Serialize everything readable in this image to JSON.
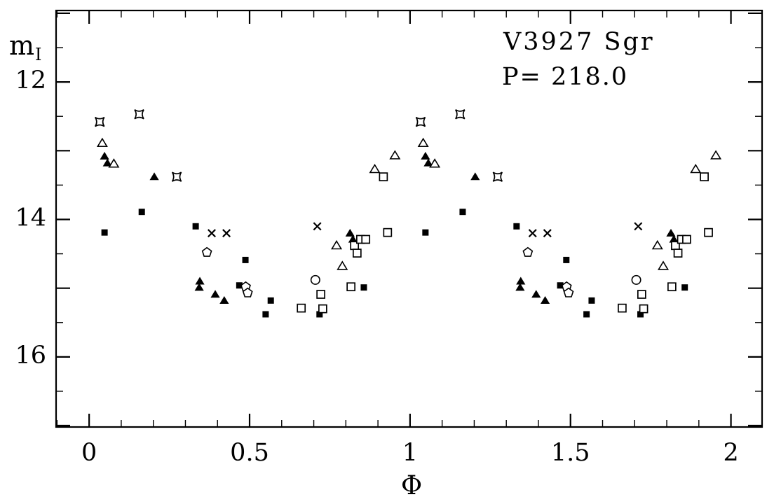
{
  "chart_data": {
    "type": "scatter",
    "title": "V3927 Sgr",
    "subtitle": "P= 218.0",
    "xlabel": "Φ",
    "ylabel_base": "m",
    "ylabel_sub": "I",
    "xlim": [
      -0.103,
      2.097
    ],
    "ylim": [
      17.02,
      10.96
    ],
    "y_inverted": true,
    "grid": false,
    "legend": "none",
    "phase_repeat": 1.0,
    "x_ticks": [
      {
        "v": 0,
        "label": "0"
      },
      {
        "v": 0.5,
        "label": "0.5"
      },
      {
        "v": 1,
        "label": "1"
      },
      {
        "v": 1.5,
        "label": "1.5"
      },
      {
        "v": 2,
        "label": "2"
      }
    ],
    "x_minor_step": 0.1,
    "y_ticks": [
      {
        "v": 12,
        "label": "12"
      },
      {
        "v": 14,
        "label": "14"
      },
      {
        "v": 16,
        "label": "16"
      }
    ],
    "y_major_step": 1.0,
    "y_minor_step": 0.5,
    "marker_color": "#000000",
    "background_color": "#ffffff",
    "series": [
      {
        "name": "filled-squares",
        "symbol": "square-filled",
        "points": [
          [
            0.048,
            14.19
          ],
          [
            0.164,
            13.89
          ],
          [
            0.332,
            14.1
          ],
          [
            0.468,
            14.96
          ],
          [
            0.487,
            14.59
          ],
          [
            0.55,
            15.38
          ],
          [
            0.566,
            15.18
          ],
          [
            0.718,
            15.38
          ],
          [
            0.856,
            14.99
          ]
        ]
      },
      {
        "name": "filled-triangles",
        "symbol": "triangle-filled",
        "points": [
          [
            0.048,
            13.08
          ],
          [
            0.057,
            13.18
          ],
          [
            0.203,
            13.38
          ],
          [
            0.345,
            14.9
          ],
          [
            0.343,
            14.99
          ],
          [
            0.393,
            15.09
          ],
          [
            0.421,
            15.18
          ],
          [
            0.813,
            14.2
          ],
          [
            0.822,
            14.29
          ]
        ]
      },
      {
        "name": "crosses",
        "symbol": "cross",
        "points": [
          [
            0.382,
            14.2
          ],
          [
            0.428,
            14.2
          ],
          [
            0.711,
            14.1
          ]
        ]
      },
      {
        "name": "four-point-stars",
        "symbol": "star4",
        "points": [
          [
            0.033,
            12.58
          ],
          [
            0.156,
            12.47
          ],
          [
            0.273,
            13.38
          ]
        ]
      },
      {
        "name": "open-circles",
        "symbol": "circle-open",
        "points": [
          [
            0.705,
            14.88
          ]
        ]
      },
      {
        "name": "open-triangles",
        "symbol": "triangle-open",
        "points": [
          [
            0.041,
            12.89
          ],
          [
            0.077,
            13.19
          ],
          [
            0.771,
            14.38
          ],
          [
            0.789,
            14.68
          ],
          [
            0.89,
            13.27
          ],
          [
            0.953,
            13.07
          ]
        ]
      },
      {
        "name": "open-squares",
        "symbol": "square-open",
        "points": [
          [
            0.661,
            15.29
          ],
          [
            0.722,
            15.09
          ],
          [
            0.728,
            15.3
          ],
          [
            0.816,
            14.98
          ],
          [
            0.827,
            14.38
          ],
          [
            0.835,
            14.49
          ],
          [
            0.846,
            14.29
          ],
          [
            0.862,
            14.29
          ],
          [
            0.917,
            13.38
          ],
          [
            0.93,
            14.19
          ]
        ]
      },
      {
        "name": "open-pentagons",
        "symbol": "pentagon-open",
        "points": [
          [
            0.367,
            14.48
          ],
          [
            0.488,
            14.98
          ],
          [
            0.494,
            15.07
          ]
        ]
      }
    ]
  }
}
